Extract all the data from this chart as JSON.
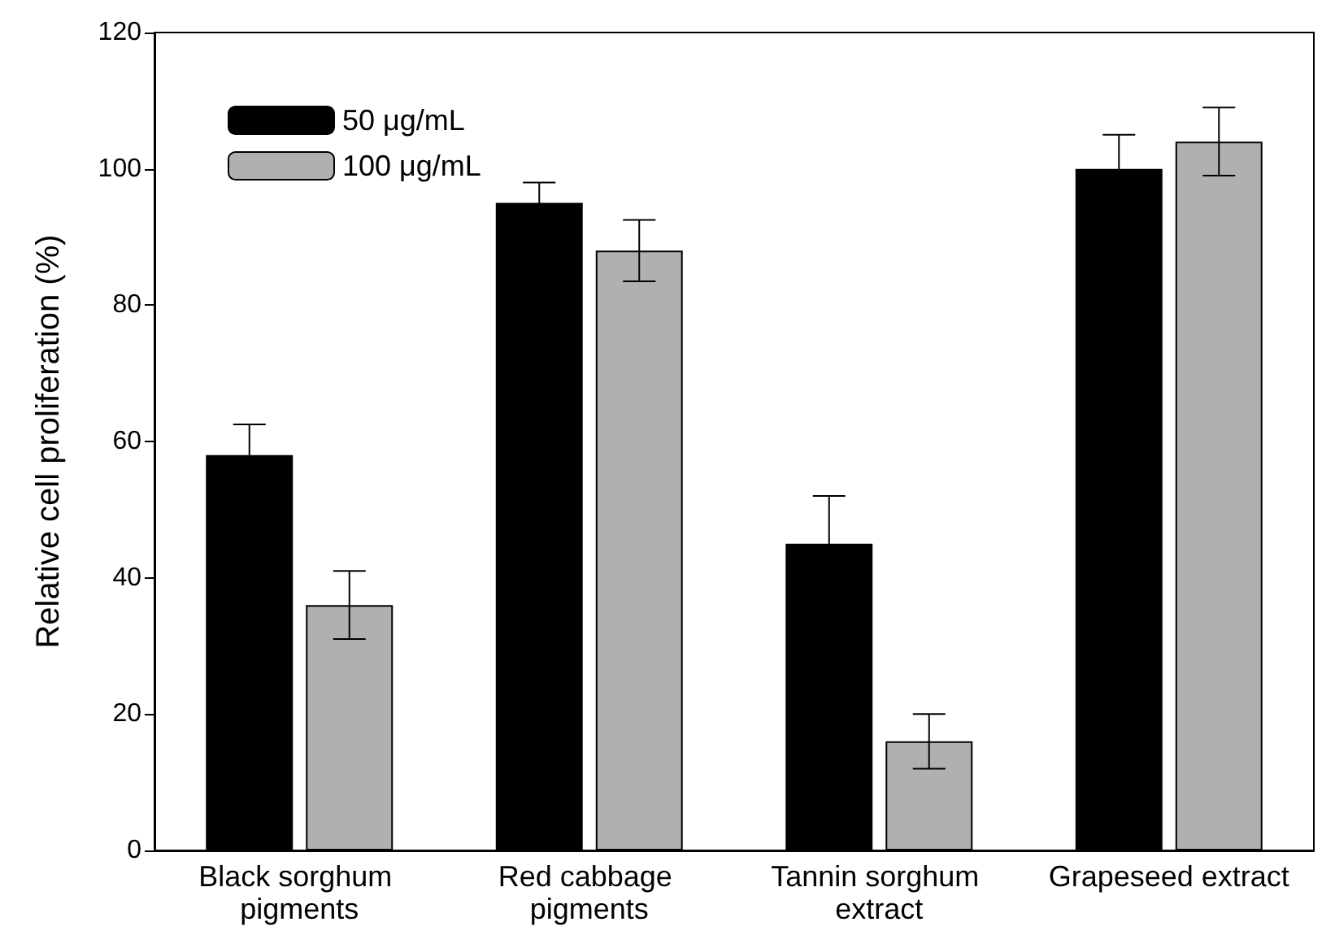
{
  "chart_data": {
    "type": "bar",
    "ylabel": "Relative cell proliferation (%)",
    "categories": [
      "Black sorghum pigments",
      "Red cabbage pigments",
      "Tannin sorghum extract",
      "Grapeseed extract"
    ],
    "series": [
      {
        "name": "50 μg/mL",
        "color": "#000000",
        "values": [
          58,
          95,
          45,
          100
        ],
        "errors": [
          4.5,
          3,
          7,
          5
        ]
      },
      {
        "name": "100 μg/mL",
        "color": "#b0b0b0",
        "values": [
          36,
          88,
          16,
          104
        ],
        "errors": [
          5,
          4.5,
          4,
          5
        ]
      }
    ],
    "ylim": [
      0,
      120
    ],
    "yticks": [
      0,
      20,
      40,
      60,
      80,
      100,
      120
    ],
    "grid": false,
    "legend": "top left"
  }
}
